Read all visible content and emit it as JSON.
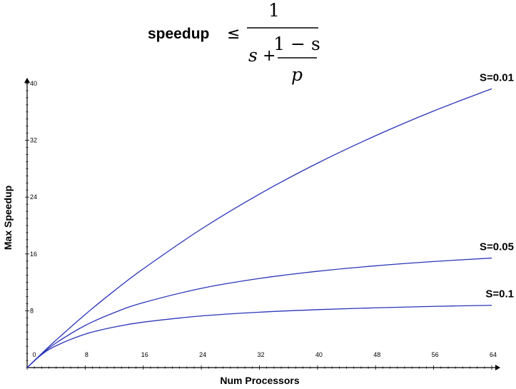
{
  "formula": {
    "lhs": "speedup",
    "relation": "≤",
    "numerator": "1",
    "s_term": "s",
    "plus": "+",
    "inner_numerator": "1 − s",
    "inner_denominator": "p"
  },
  "chart_data": {
    "type": "line",
    "title": "",
    "xlabel": "Num Processors",
    "ylabel": "Max Speedup",
    "xlim": [
      0,
      64
    ],
    "ylim": [
      0,
      40
    ],
    "x_ticks": [
      0,
      8,
      16,
      24,
      32,
      40,
      48,
      56,
      64
    ],
    "y_ticks": [
      8,
      16,
      24,
      32,
      40
    ],
    "x_tick_labels": [
      "0",
      "8",
      "16",
      "24",
      "32",
      "40",
      "48",
      "56",
      "64"
    ],
    "y_tick_labels": [
      "8",
      "16",
      "24",
      "32",
      "40"
    ],
    "grid": false,
    "line_color": "#2a35b8",
    "series": [
      {
        "name": "S=0.01",
        "s": 0.01,
        "x": [
          0,
          2,
          4,
          8,
          12,
          16,
          24,
          32,
          40,
          48,
          56,
          64
        ],
        "values": [
          0,
          1.98,
          3.88,
          7.48,
          10.81,
          13.91,
          19.51,
          24.43,
          28.78,
          32.65,
          36.13,
          39.26
        ]
      },
      {
        "name": "S=0.05",
        "s": 0.05,
        "x": [
          0,
          2,
          4,
          8,
          12,
          16,
          24,
          32,
          40,
          48,
          56,
          64
        ],
        "values": [
          0,
          1.9,
          3.48,
          5.93,
          7.74,
          9.14,
          11.16,
          12.55,
          13.56,
          14.33,
          14.94,
          15.42
        ]
      },
      {
        "name": "S=0.1",
        "s": 0.1,
        "x": [
          0,
          2,
          4,
          8,
          12,
          16,
          24,
          32,
          40,
          48,
          56,
          64
        ],
        "values": [
          0,
          1.82,
          3.08,
          4.71,
          5.71,
          6.4,
          7.27,
          7.8,
          8.16,
          8.42,
          8.62,
          8.77
        ]
      }
    ]
  }
}
